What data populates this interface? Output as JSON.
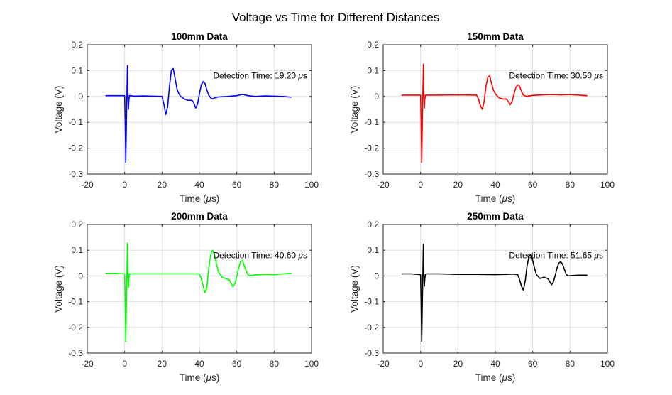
{
  "figure": {
    "title": "Voltage vs Time for Different Distances"
  },
  "chart_data": [
    {
      "type": "line",
      "title": "100mm Data",
      "xlabel": "Time (μs)",
      "ylabel": "Voltage (V)",
      "xlim": [
        -20,
        100
      ],
      "ylim": [
        -0.3,
        0.2
      ],
      "xticks": [
        "-20",
        "0",
        "20",
        "40",
        "60",
        "80",
        "100"
      ],
      "yticks": [
        "-0.3",
        "-0.2",
        "-0.1",
        "0",
        "0.1",
        "0.2"
      ],
      "grid": true,
      "annotation": "Detection Time: 19.20 μs",
      "series": [
        {
          "color": "#0000ff",
          "x": [
            -10,
            -5,
            0,
            0.3,
            0.6,
            0.9,
            1.2,
            1.5,
            1.7,
            2.0,
            2.3,
            2.6,
            3,
            5,
            10,
            15,
            20,
            21,
            22,
            23,
            24,
            25,
            26,
            27,
            28,
            29,
            30,
            32,
            34,
            36,
            37,
            38,
            39,
            40,
            41,
            42,
            43,
            44,
            45,
            46,
            47,
            48,
            50,
            55,
            60,
            63,
            66,
            70,
            75,
            80,
            85,
            89
          ],
          "y": [
            0.003,
            0.003,
            0.003,
            -0.1,
            -0.255,
            -0.12,
            0.0,
            0.12,
            0.03,
            -0.05,
            -0.01,
            0.003,
            0.003,
            0.001,
            0.002,
            0.001,
            0.0,
            -0.03,
            -0.07,
            -0.04,
            0.04,
            0.1,
            0.108,
            0.07,
            0.03,
            0.01,
            0.0,
            -0.01,
            -0.015,
            -0.015,
            -0.025,
            -0.045,
            -0.03,
            0.01,
            0.045,
            0.058,
            0.05,
            0.025,
            0.005,
            -0.005,
            -0.01,
            -0.006,
            -0.002,
            0.0,
            0.003,
            0.008,
            0.003,
            0.0,
            0.002,
            0.001,
            0.0,
            -0.003
          ]
        }
      ]
    },
    {
      "type": "line",
      "title": "150mm Data",
      "xlabel": "Time (μs)",
      "ylabel": "Voltage (V)",
      "xlim": [
        -20,
        100
      ],
      "ylim": [
        -0.3,
        0.2
      ],
      "xticks": [
        "-20",
        "0",
        "20",
        "40",
        "60",
        "80",
        "100"
      ],
      "yticks": [
        "-0.3",
        "-0.2",
        "-0.1",
        "0",
        "0.1",
        "0.2"
      ],
      "grid": true,
      "annotation": "Detection Time: 30.50 μs",
      "series": [
        {
          "color": "#ff0000",
          "x": [
            -10,
            -5,
            0,
            0.3,
            0.6,
            0.9,
            1.2,
            1.5,
            1.7,
            2.0,
            2.3,
            2.6,
            3,
            10,
            20,
            30,
            31,
            32,
            33,
            34,
            35,
            36,
            37,
            38,
            39,
            40,
            41,
            42,
            44,
            46,
            47,
            48,
            49,
            50,
            51,
            52,
            53,
            54,
            55,
            56,
            57,
            58,
            60,
            65,
            70,
            75,
            80,
            85,
            89
          ],
          "y": [
            0.005,
            0.005,
            0.005,
            -0.1,
            -0.255,
            -0.12,
            0.0,
            0.125,
            0.03,
            -0.045,
            -0.01,
            0.005,
            0.005,
            0.005,
            0.006,
            0.005,
            -0.01,
            -0.035,
            -0.05,
            -0.02,
            0.04,
            0.075,
            0.08,
            0.05,
            0.025,
            0.01,
            0.002,
            -0.005,
            -0.01,
            -0.01,
            -0.02,
            -0.032,
            -0.02,
            0.01,
            0.035,
            0.045,
            0.04,
            0.02,
            0.005,
            0.002,
            0.0,
            0.002,
            0.004,
            0.006,
            0.007,
            0.006,
            0.007,
            0.005,
            0.003
          ]
        }
      ]
    },
    {
      "type": "line",
      "title": "200mm Data",
      "xlabel": "Time (μs)",
      "ylabel": "Voltage (V)",
      "xlim": [
        -20,
        100
      ],
      "ylim": [
        -0.3,
        0.2
      ],
      "xticks": [
        "-20",
        "0",
        "20",
        "40",
        "60",
        "80",
        "100"
      ],
      "yticks": [
        "-0.3",
        "-0.2",
        "-0.1",
        "0",
        "0.1",
        "0.2"
      ],
      "grid": true,
      "annotation": "Detection Time: 40.60 μs",
      "series": [
        {
          "color": "#00ff00",
          "x": [
            -10,
            -5,
            0,
            0.3,
            0.6,
            0.9,
            1.2,
            1.5,
            1.7,
            2.0,
            2.3,
            2.6,
            3,
            10,
            20,
            30,
            40,
            41,
            42,
            43,
            44,
            45,
            46,
            47,
            48,
            49,
            50,
            52,
            54,
            56,
            57,
            58,
            59,
            60,
            61,
            62,
            63,
            64,
            65,
            66,
            67,
            68,
            70,
            75,
            80,
            85,
            89
          ],
          "y": [
            0.01,
            0.01,
            0.008,
            -0.1,
            -0.255,
            -0.12,
            0.0,
            0.128,
            0.03,
            -0.045,
            -0.01,
            0.008,
            0.008,
            0.008,
            0.008,
            0.008,
            0.008,
            -0.01,
            -0.04,
            -0.065,
            -0.045,
            0.03,
            0.08,
            0.1,
            0.085,
            0.05,
            0.02,
            -0.005,
            -0.01,
            -0.015,
            -0.03,
            -0.042,
            -0.03,
            0.0,
            0.03,
            0.055,
            0.06,
            0.04,
            0.02,
            0.005,
            0.0,
            0.002,
            0.004,
            0.006,
            0.005,
            0.008,
            0.01
          ]
        }
      ]
    },
    {
      "type": "line",
      "title": "250mm Data",
      "xlabel": "Time (μs)",
      "ylabel": "Voltage (V)",
      "xlim": [
        -20,
        100
      ],
      "ylim": [
        -0.3,
        0.2
      ],
      "xticks": [
        "-20",
        "0",
        "20",
        "40",
        "60",
        "80",
        "100"
      ],
      "yticks": [
        "-0.3",
        "-0.2",
        "-0.1",
        "0",
        "0.1",
        "0.2"
      ],
      "grid": true,
      "annotation": "Detection Time: 51.65 μs",
      "series": [
        {
          "color": "#000000",
          "x": [
            -10,
            -5,
            0,
            0.3,
            0.6,
            0.9,
            1.2,
            1.5,
            1.7,
            2.0,
            2.3,
            2.6,
            3,
            10,
            20,
            30,
            40,
            50,
            52,
            53,
            54,
            55,
            56,
            57,
            58,
            59,
            60,
            61,
            62,
            64,
            66,
            68,
            69,
            70,
            71,
            72,
            73,
            74,
            75,
            76,
            77,
            78,
            79,
            80,
            82,
            85,
            89
          ],
          "y": [
            0.008,
            0.008,
            0.005,
            -0.1,
            -0.255,
            -0.12,
            0.0,
            0.123,
            0.03,
            -0.04,
            -0.01,
            0.005,
            0.008,
            0.008,
            0.006,
            0.006,
            0.005,
            0.007,
            0.005,
            -0.015,
            -0.04,
            -0.055,
            -0.02,
            0.04,
            0.075,
            0.085,
            0.06,
            0.03,
            0.005,
            -0.01,
            -0.005,
            -0.01,
            -0.02,
            -0.035,
            -0.025,
            0.0,
            0.03,
            0.05,
            0.055,
            0.045,
            0.025,
            0.005,
            0.0,
            0.001,
            0.002,
            0.003,
            0.003
          ]
        }
      ]
    }
  ]
}
